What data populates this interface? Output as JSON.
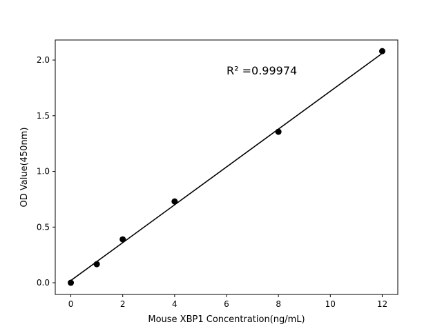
{
  "chart_data": {
    "type": "scatter",
    "title": "",
    "xlabel": "Mouse XBP1 Concentration(ng/mL)",
    "ylabel": "OD Value(450nm)",
    "xlim": [
      -0.6,
      12.6
    ],
    "ylim": [
      -0.105,
      2.18
    ],
    "xticks": [
      0,
      2,
      4,
      6,
      8,
      10,
      12
    ],
    "xtick_labels": [
      "0",
      "2",
      "4",
      "6",
      "8",
      "10",
      "12"
    ],
    "yticks": [
      0.0,
      0.5,
      1.0,
      1.5,
      2.0
    ],
    "ytick_labels": [
      "0.0",
      "0.5",
      "1.0",
      "1.5",
      "2.0"
    ],
    "grid": false,
    "points": {
      "x": [
        0,
        1,
        2,
        4,
        8,
        12
      ],
      "y": [
        0.0,
        0.167,
        0.39,
        0.73,
        1.356,
        2.08
      ],
      "color": "#000000"
    },
    "fit_line": {
      "x": [
        0,
        12
      ],
      "y": [
        0.02,
        2.06
      ],
      "color": "#000000"
    },
    "annotation": {
      "text": "R² =0.99974",
      "x": 6,
      "y": 1.87
    }
  }
}
